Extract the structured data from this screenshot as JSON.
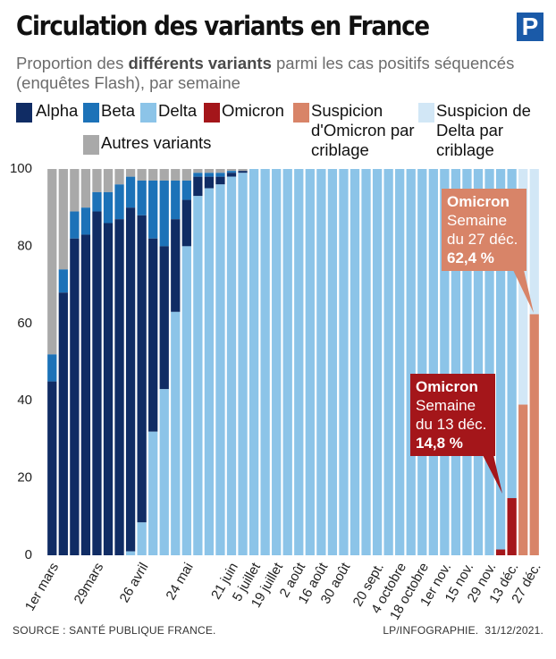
{
  "chart_data": {
    "type": "stacked-bar",
    "title": "Circulation des variants en France",
    "subtitle": [
      "Proportion des ",
      "différents variants",
      " parmi les cas positifs séquencés (enquêtes Flash), par semaine"
    ],
    "logo": "P",
    "categories": [
      "1er mars",
      null,
      null,
      null,
      "29mars",
      null,
      null,
      null,
      "26 avril",
      null,
      null,
      null,
      "24 mai",
      null,
      null,
      null,
      "21 juin",
      null,
      "5 juillet",
      null,
      "19 juillet",
      null,
      "2 août",
      null,
      "16 août",
      null,
      "30 août",
      null,
      null,
      "20 sept.",
      null,
      "4 octobre",
      null,
      "18 octobre",
      null,
      "1er nov.",
      null,
      "15 nov.",
      null,
      "29 nov.",
      null,
      "13 déc.",
      null,
      "27 déc."
    ],
    "series": [
      {
        "name": "Alpha",
        "color": "#102c64",
        "values": [
          45,
          68,
          82,
          83,
          89,
          86,
          87,
          89,
          79.5,
          50,
          37,
          24,
          12,
          5,
          3,
          2,
          1,
          0.5,
          0,
          0,
          0,
          0,
          0,
          0,
          0,
          0,
          0,
          0,
          0,
          0,
          0,
          0,
          0,
          0,
          0,
          0,
          0,
          0,
          0,
          0,
          0,
          0,
          0,
          0
        ]
      },
      {
        "name": "Beta",
        "color": "#1c72b8",
        "values": [
          7,
          6,
          7,
          7,
          5,
          8,
          9,
          8,
          9,
          15,
          17,
          10,
          5,
          1,
          1,
          1,
          0.5,
          0,
          0,
          0,
          0,
          0,
          0,
          0,
          0,
          0,
          0,
          0,
          0,
          0,
          0,
          0,
          0,
          0,
          0,
          0,
          0,
          0,
          0,
          0,
          0,
          0,
          0,
          0
        ]
      },
      {
        "name": "Delta",
        "color": "#8cc4e8",
        "values": [
          0,
          0,
          0,
          0,
          0,
          0,
          0,
          1,
          8.5,
          32,
          43,
          63,
          80,
          93,
          95,
          96,
          98,
          99,
          100,
          100,
          100,
          100,
          100,
          100,
          100,
          100,
          100,
          100,
          100,
          100,
          100,
          100,
          100,
          100,
          100,
          100,
          100,
          100,
          100,
          100,
          98.5,
          85.2,
          0,
          0
        ]
      },
      {
        "name": "Omicron",
        "color": "#a4161a",
        "values": [
          0,
          0,
          0,
          0,
          0,
          0,
          0,
          0,
          0,
          0,
          0,
          0,
          0,
          0,
          0,
          0,
          0,
          0,
          0,
          0,
          0,
          0,
          0,
          0,
          0,
          0,
          0,
          0,
          0,
          0,
          0,
          0,
          0,
          0,
          0,
          0,
          0,
          0,
          0,
          0,
          1.5,
          14.8,
          0,
          0
        ]
      },
      {
        "name": "Suspicion d'Omicron par criblage",
        "color": "#d88468",
        "values": [
          0,
          0,
          0,
          0,
          0,
          0,
          0,
          0,
          0,
          0,
          0,
          0,
          0,
          0,
          0,
          0,
          0,
          0,
          0,
          0,
          0,
          0,
          0,
          0,
          0,
          0,
          0,
          0,
          0,
          0,
          0,
          0,
          0,
          0,
          0,
          0,
          0,
          0,
          0,
          0,
          0,
          0,
          39,
          62.4
        ]
      },
      {
        "name": "Suspicion de Delta par criblage",
        "color": "#d2e7f6",
        "values": [
          0,
          0,
          0,
          0,
          0,
          0,
          0,
          0,
          0,
          0,
          0,
          0,
          0,
          0,
          0,
          0,
          0,
          0,
          0,
          0,
          0,
          0,
          0,
          0,
          0,
          0,
          0,
          0,
          0,
          0,
          0,
          0,
          0,
          0,
          0,
          0,
          0,
          0,
          0,
          0,
          0,
          0,
          61,
          37.6
        ]
      },
      {
        "name": "Autres variants",
        "color": "#a9a9a9",
        "values": [
          48,
          26,
          11,
          10,
          6,
          6,
          4,
          2,
          3,
          3,
          3,
          3,
          3,
          1,
          1,
          1,
          0.5,
          0.5,
          0,
          0,
          0,
          0,
          0,
          0,
          0,
          0,
          0,
          0,
          0,
          0,
          0,
          0,
          0,
          0,
          0,
          0,
          0,
          0,
          0,
          0,
          0,
          0,
          0,
          0
        ]
      }
    ],
    "ylim": [
      0,
      100
    ],
    "yticks": [
      0,
      20,
      40,
      60,
      80,
      100
    ],
    "grid": false,
    "annotations": [
      {
        "title": "Omicron",
        "lines": [
          "Semaine",
          "du 13 déc."
        ],
        "value": "14,8 %"
      },
      {
        "title": "Omicron",
        "lines": [
          "Semaine",
          "du 27 déc."
        ],
        "value": "62,4 %"
      }
    ],
    "source": "SOURCE : SANTÉ PUBLIQUE FRANCE.",
    "credit": "LP/INFOGRAPHIE.  31/12/2021."
  }
}
